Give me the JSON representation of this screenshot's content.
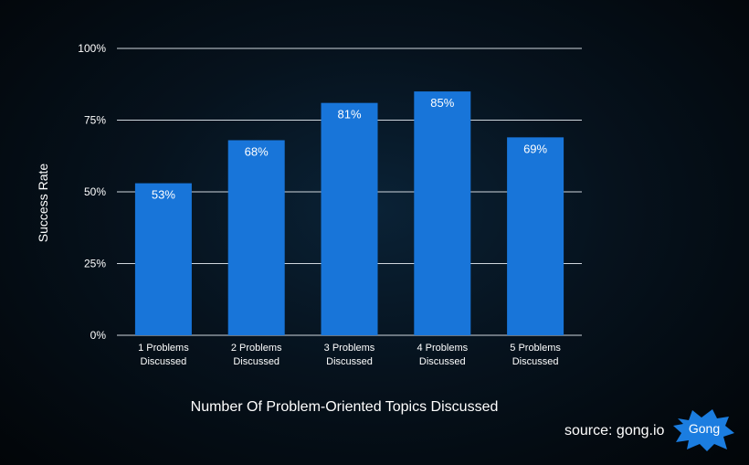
{
  "chart_data": {
    "type": "bar",
    "categories": [
      [
        "1 Problems",
        "Discussed"
      ],
      [
        "2 Problems",
        "Discussed"
      ],
      [
        "3 Problems",
        "Discussed"
      ],
      [
        "4 Problems",
        "Discussed"
      ],
      [
        "5 Problems",
        "Discussed"
      ]
    ],
    "values": [
      53,
      68,
      81,
      85,
      69
    ],
    "data_labels": [
      "53%",
      "68%",
      "81%",
      "85%",
      "69%"
    ],
    "yticks": [
      0,
      25,
      50,
      75,
      100
    ],
    "ytick_labels": [
      "0%",
      "25%",
      "50%",
      "75%",
      "100%"
    ],
    "ylim": [
      0,
      100
    ],
    "ylabel": "Success Rate",
    "xlabel": "Number Of Problem-Oriented Topics Discussed",
    "grid": true,
    "bar_color": "#1875d9",
    "grid_color": "#cfd6dd"
  },
  "source": "source: gong.io",
  "logo": {
    "text": "Gong",
    "color": "#1b7de0"
  }
}
